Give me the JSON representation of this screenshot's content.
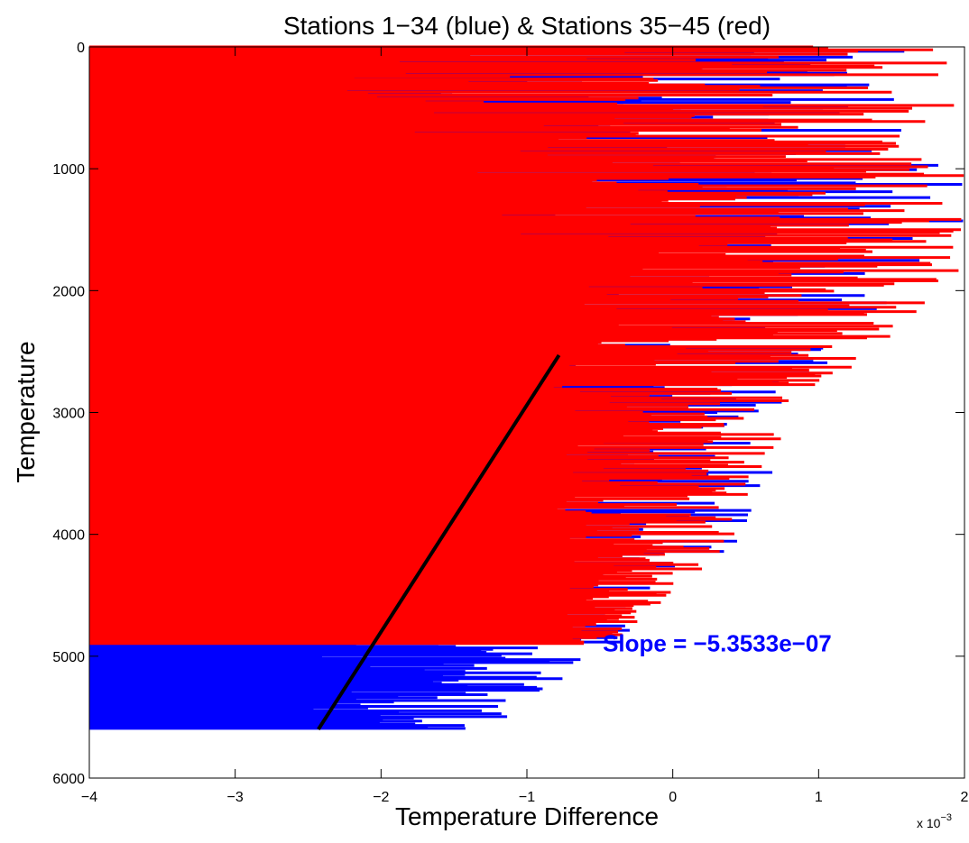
{
  "chart_data": {
    "type": "bar",
    "orientation": "horizontal",
    "title": "Stations 1−34 (blue) & Stations 35−45 (red)",
    "xlabel": "Temperature Difference",
    "ylabel": "Temperature",
    "x_multiplier_label": "x 10",
    "x_multiplier_exponent": "−3",
    "xlim": [
      -0.004,
      0.002
    ],
    "ylim": [
      0,
      6000
    ],
    "y_reversed": true,
    "x_ticks": [
      -0.004,
      -0.003,
      -0.002,
      -0.001,
      0,
      0.001,
      0.002
    ],
    "x_tick_labels": [
      "−4",
      "−3",
      "−2",
      "−1",
      "0",
      "1",
      "2"
    ],
    "y_ticks": [
      0,
      1000,
      2000,
      3000,
      4000,
      5000,
      6000
    ],
    "y_tick_labels": [
      "0",
      "1000",
      "2000",
      "3000",
      "4000",
      "5000",
      "6000"
    ],
    "grid": false,
    "series": [
      {
        "name": "Stations 1−34",
        "color": "#0000ff",
        "baseline": -0.004,
        "profile": [
          {
            "y": 0,
            "x_min": -0.0028,
            "x_max": 0.0016
          },
          {
            "y": 500,
            "x_min": -0.0028,
            "x_max": 0.0016
          },
          {
            "y": 1000,
            "x_min": -0.0029,
            "x_max": 0.002
          },
          {
            "y": 1500,
            "x_min": -0.0032,
            "x_max": 0.002
          },
          {
            "y": 2000,
            "x_min": -0.0032,
            "x_max": 0.0016
          },
          {
            "y": 2500,
            "x_min": -0.0028,
            "x_max": 0.0012
          },
          {
            "y": 3000,
            "x_min": -0.0026,
            "x_max": 0.0008
          },
          {
            "y": 3500,
            "x_min": -0.0024,
            "x_max": 0.0007
          },
          {
            "y": 4000,
            "x_min": -0.0024,
            "x_max": 0.0005
          },
          {
            "y": 4500,
            "x_min": -0.0026,
            "x_max": 0.0001
          },
          {
            "y": 5000,
            "x_min": -0.0026,
            "x_max": -0.0004
          },
          {
            "y": 5300,
            "x_min": -0.0026,
            "x_max": -0.0009
          },
          {
            "y": 5600,
            "x_min": -0.0024,
            "x_max": -0.0012
          }
        ]
      },
      {
        "name": "Stations 35−45",
        "color": "#ff0000",
        "baseline": -0.004,
        "profile": [
          {
            "y": 0,
            "x_min": -0.0022,
            "x_max": 0.002
          },
          {
            "y": 500,
            "x_min": -0.0024,
            "x_max": 0.002
          },
          {
            "y": 1000,
            "x_min": -0.0016,
            "x_max": 0.002
          },
          {
            "y": 1500,
            "x_min": -0.0012,
            "x_max": 0.002
          },
          {
            "y": 2000,
            "x_min": -0.001,
            "x_max": 0.002
          },
          {
            "y": 2500,
            "x_min": -0.0009,
            "x_max": 0.0014
          },
          {
            "y": 3000,
            "x_min": -0.0008,
            "x_max": 0.0009
          },
          {
            "y": 3500,
            "x_min": -0.0008,
            "x_max": 0.0007
          },
          {
            "y": 4000,
            "x_min": -0.0008,
            "x_max": 0.0005
          },
          {
            "y": 4500,
            "x_min": -0.0008,
            "x_max": 0.0
          },
          {
            "y": 4900,
            "x_min": -0.0007,
            "x_max": -0.0004
          }
        ]
      }
    ],
    "fit_line": {
      "color": "#000000",
      "points": [
        [
          -0.00243,
          5600
        ],
        [
          -0.00078,
          2530
        ]
      ],
      "slope_label": "Slope = −5.3533e−07",
      "label_color": "#0000ff",
      "label_anchor": {
        "x": -0.00048,
        "y": 4960
      }
    }
  }
}
